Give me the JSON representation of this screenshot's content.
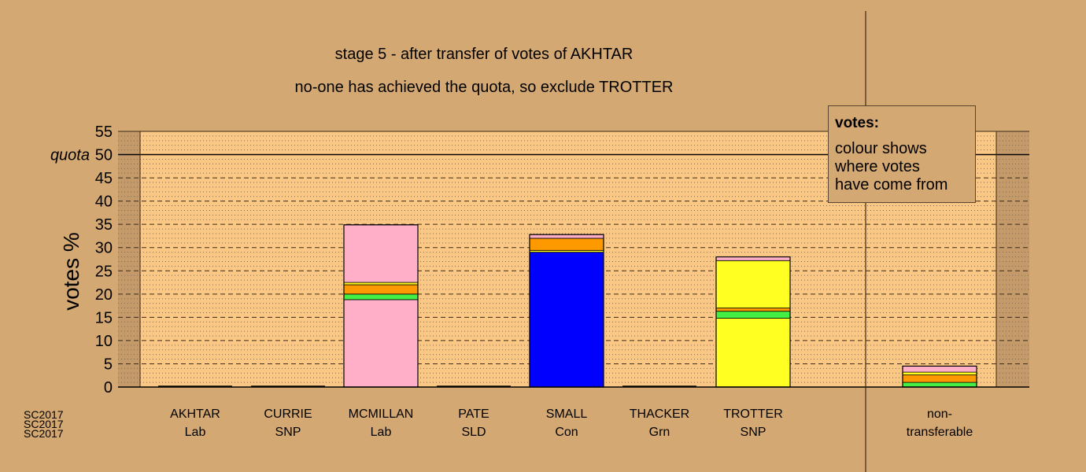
{
  "header": {
    "title_line1": "stage 5 - after transfer of votes of AKHTAR",
    "title_line2": "no-one has achieved the quota, so exclude TROTTER"
  },
  "legend": {
    "title": "votes:",
    "lines": [
      "colour shows",
      "where votes",
      "have come from"
    ]
  },
  "footer": [
    "SC2017",
    "SC2017",
    "SC2017"
  ],
  "chart_data": {
    "type": "bar",
    "stacked": true,
    "ylabel": "votes %",
    "ylim": [
      0,
      55
    ],
    "yticks": [
      0,
      5,
      10,
      15,
      20,
      25,
      30,
      35,
      40,
      45,
      50,
      55
    ],
    "quota": {
      "label": "quota",
      "value": 50
    },
    "grid": true,
    "categories": [
      {
        "name": "AKHTAR",
        "party": "Lab"
      },
      {
        "name": "CURRIE",
        "party": "SNP"
      },
      {
        "name": "MCMILLAN",
        "party": "Lab"
      },
      {
        "name": "PATE",
        "party": "SLD"
      },
      {
        "name": "SMALL",
        "party": "Con"
      },
      {
        "name": "THACKER",
        "party": "Grn"
      },
      {
        "name": "TROTTER",
        "party": "SNP"
      },
      {
        "name": "non-",
        "party": "transferable"
      }
    ],
    "segments": [
      [],
      [],
      [
        {
          "value": 18.8,
          "color": "#ffb0c8"
        },
        {
          "value": 1.2,
          "color": "#44ee44"
        },
        {
          "value": 2.0,
          "color": "#ff9900"
        },
        {
          "value": 0.5,
          "color": "#ffff22"
        },
        {
          "value": 12.4,
          "color": "#ffb0c8"
        }
      ],
      [],
      [
        {
          "value": 29.0,
          "color": "#0000ff"
        },
        {
          "value": 0.4,
          "color": "#ffff22"
        },
        {
          "value": 2.6,
          "color": "#ff9900"
        },
        {
          "value": 0.8,
          "color": "#ffb0c8"
        }
      ],
      [],
      [
        {
          "value": 14.8,
          "color": "#ffff22"
        },
        {
          "value": 1.5,
          "color": "#44ee44"
        },
        {
          "value": 0.7,
          "color": "#ff9900"
        },
        {
          "value": 10.2,
          "color": "#ffff22"
        },
        {
          "value": 0.8,
          "color": "#ffb0c8"
        }
      ],
      [
        {
          "value": 1.0,
          "color": "#44ee44"
        },
        {
          "value": 1.6,
          "color": "#ff9900"
        },
        {
          "value": 0.6,
          "color": "#ffff22"
        },
        {
          "value": 1.3,
          "color": "#ffb0c8"
        }
      ]
    ],
    "colors": {
      "background": "#d4a873",
      "plot_background": "#fac784",
      "shaded_background": "#c49a6a"
    }
  }
}
